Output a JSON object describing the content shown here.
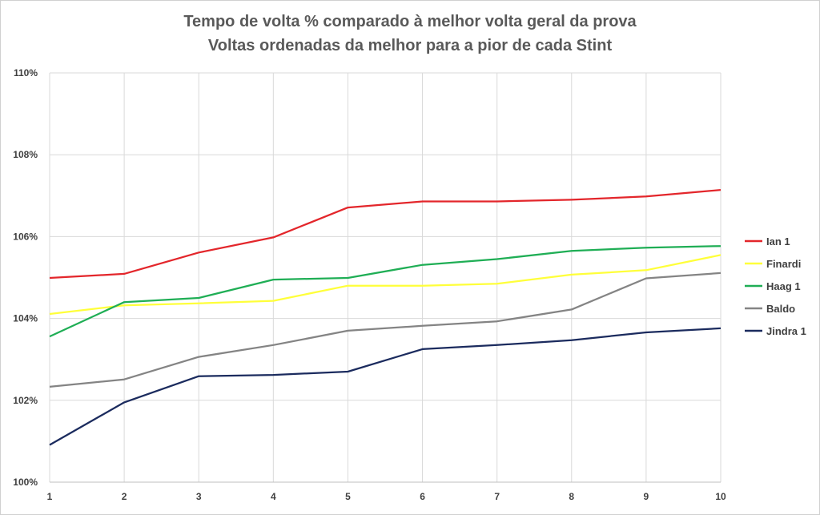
{
  "chart_data": {
    "type": "line",
    "title": "Tempo de volta % comparado à melhor volta geral da prova",
    "subtitle": "Voltas ordenadas da melhor para a pior de cada Stint",
    "x": [
      1,
      2,
      3,
      4,
      5,
      6,
      7,
      8,
      9,
      10
    ],
    "ylim": [
      100,
      110
    ],
    "yticks": [
      "100%",
      "102%",
      "104%",
      "106%",
      "108%",
      "110%"
    ],
    "grid": true,
    "legend_position": "right",
    "series": [
      {
        "name": "Ian 1",
        "color": "#e3262b",
        "values": [
          104.99,
          105.09,
          105.61,
          105.98,
          106.71,
          106.86,
          106.86,
          106.9,
          106.98,
          107.14
        ]
      },
      {
        "name": "Finardi",
        "color": "#ffff3a",
        "values": [
          104.11,
          104.32,
          104.37,
          104.43,
          104.8,
          104.8,
          104.85,
          105.07,
          105.18,
          105.55
        ]
      },
      {
        "name": "Haag 1",
        "color": "#1fae55",
        "values": [
          103.56,
          104.4,
          104.5,
          104.95,
          104.99,
          105.31,
          105.45,
          105.65,
          105.73,
          105.77
        ]
      },
      {
        "name": "Baldo",
        "color": "#848484",
        "values": [
          102.33,
          102.51,
          103.06,
          103.35,
          103.7,
          103.82,
          103.93,
          104.22,
          104.98,
          105.11
        ]
      },
      {
        "name": "Jindra 1",
        "color": "#1b2b5e",
        "values": [
          100.91,
          101.95,
          102.59,
          102.62,
          102.7,
          103.25,
          103.35,
          103.47,
          103.66,
          103.76
        ]
      }
    ]
  }
}
